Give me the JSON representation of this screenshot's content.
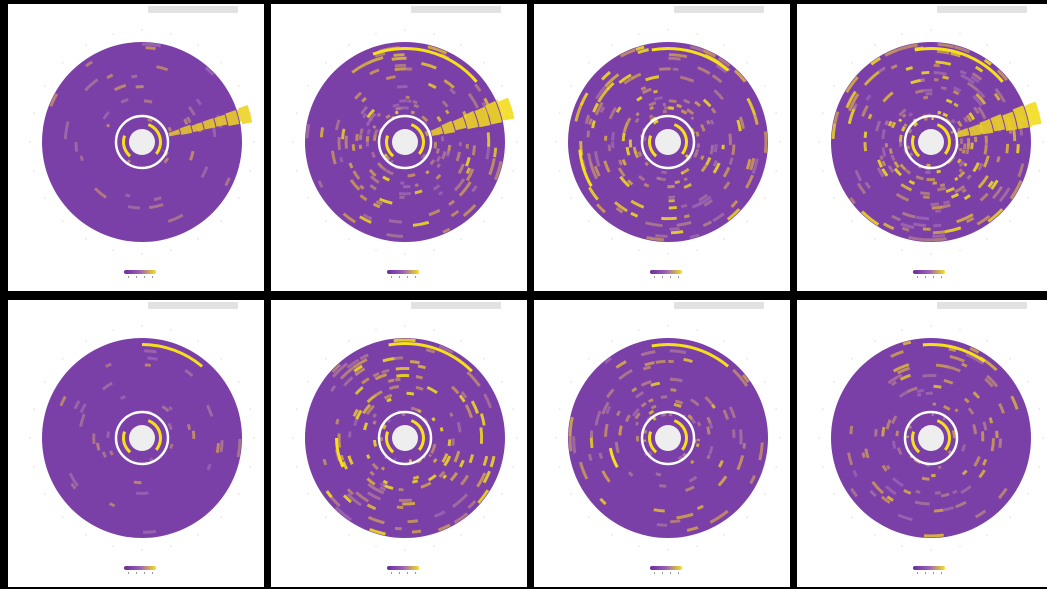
{
  "colors": {
    "background": "#000000",
    "panel": "#ffffff",
    "disc_base": "#7b3fa8",
    "disc_mid": "#9a62b8",
    "disc_bright": "#d1a14c",
    "disc_hot": "#f5e01a",
    "hub": "#eeeeee",
    "ring": "#ffffff",
    "title_bar": "#e2e2e2",
    "legend_low": "#6a2c9e",
    "legend_high": "#f5e01a"
  },
  "chart_data": [
    {
      "type": "heatmap",
      "title": "",
      "row": 0,
      "col": 0,
      "intensity": 0.15,
      "beam": {
        "angle_deg": -15,
        "width_deg": 10,
        "strength": 0.8
      },
      "hot_arcs": [],
      "side_axis": false
    },
    {
      "type": "heatmap",
      "title": "",
      "row": 0,
      "col": 1,
      "intensity": 0.45,
      "beam": {
        "angle_deg": -18,
        "width_deg": 14,
        "strength": 1.0
      },
      "hot_arcs": [
        {
          "start": -110,
          "end": -40,
          "r": 0.95
        }
      ],
      "side_axis": true
    },
    {
      "type": "heatmap",
      "title": "",
      "row": 0,
      "col": 2,
      "intensity": 0.55,
      "beam": null,
      "hot_arcs": [
        {
          "start": 150,
          "end": 175,
          "r": 0.9
        },
        {
          "start": -100,
          "end": -50,
          "r": 0.95
        }
      ],
      "side_axis": true
    },
    {
      "type": "heatmap",
      "title": "",
      "row": 0,
      "col": 3,
      "intensity": 0.65,
      "beam": {
        "angle_deg": -15,
        "width_deg": 14,
        "strength": 1.0
      },
      "hot_arcs": [
        {
          "start": -100,
          "end": -40,
          "r": 0.95
        }
      ],
      "side_axis": true
    },
    {
      "type": "heatmap",
      "title": "",
      "row": 1,
      "col": 0,
      "intensity": 0.12,
      "beam": null,
      "hot_arcs": [
        {
          "start": -90,
          "end": -50,
          "r": 0.95
        }
      ],
      "side_axis": false
    },
    {
      "type": "heatmap",
      "title": "",
      "row": 1,
      "col": 1,
      "intensity": 0.55,
      "beam": null,
      "hot_arcs": [
        {
          "start": -100,
          "end": -45,
          "r": 0.96
        },
        {
          "start": 155,
          "end": 180,
          "r": 0.7
        }
      ],
      "side_axis": true
    },
    {
      "type": "heatmap",
      "title": "",
      "row": 1,
      "col": 2,
      "intensity": 0.35,
      "beam": null,
      "hot_arcs": [
        {
          "start": -100,
          "end": -50,
          "r": 0.95
        },
        {
          "start": 150,
          "end": 170,
          "r": 0.6
        }
      ],
      "side_axis": true
    },
    {
      "type": "heatmap",
      "title": "",
      "row": 1,
      "col": 3,
      "intensity": 0.3,
      "beam": null,
      "hot_arcs": [
        {
          "start": -95,
          "end": -55,
          "r": 0.95
        }
      ],
      "side_axis": true
    }
  ]
}
